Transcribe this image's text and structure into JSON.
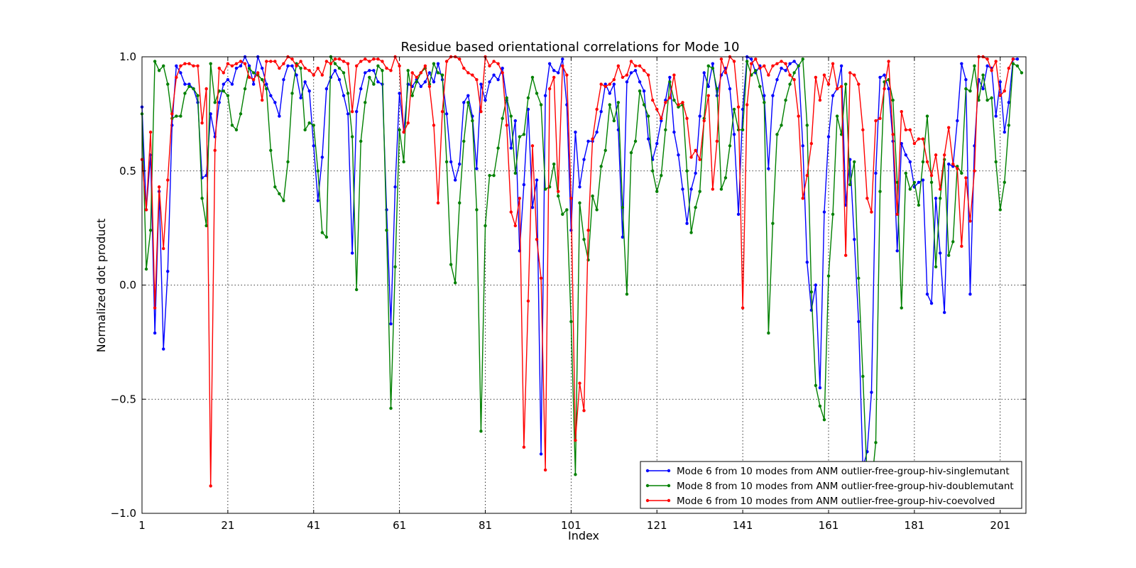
{
  "chart_data": {
    "type": "line",
    "title": "Residue based orientational correlations for Mode 10",
    "xlabel": "Index",
    "ylabel": "Normalized dot product",
    "xlim": [
      1,
      207
    ],
    "ylim": [
      -1.0,
      1.0
    ],
    "x_start": 1,
    "xticks": [
      1,
      21,
      41,
      61,
      81,
      101,
      121,
      141,
      161,
      181,
      201
    ],
    "yticks": [
      -1.0,
      -0.5,
      0.0,
      0.5,
      1.0
    ],
    "ytick_labels": [
      "−1.0",
      "−0.5",
      "0.0",
      "0.5",
      "1.0"
    ],
    "grid": true,
    "legend_position": "lower-right",
    "series": [
      {
        "name": "Mode 6 from 10 modes from ANM outlier-free-group-hiv-singlemutant",
        "color": "#0000ff",
        "values": [
          0.78,
          0.33,
          0.57,
          -0.21,
          0.41,
          -0.28,
          0.06,
          0.7,
          0.96,
          0.93,
          0.88,
          0.88,
          0.86,
          0.8,
          0.47,
          0.48,
          0.75,
          0.65,
          0.8,
          0.88,
          0.9,
          0.88,
          0.95,
          0.96,
          1.0,
          0.96,
          0.88,
          1.0,
          0.95,
          0.88,
          0.83,
          0.8,
          0.74,
          0.9,
          0.96,
          0.96,
          0.92,
          0.82,
          0.89,
          0.85,
          0.61,
          0.37,
          0.56,
          0.86,
          0.91,
          0.94,
          0.9,
          0.83,
          0.75,
          0.14,
          0.76,
          0.86,
          0.93,
          0.94,
          0.94,
          0.89,
          0.88,
          0.33,
          -0.17,
          0.43,
          0.84,
          0.67,
          0.88,
          0.87,
          0.9,
          0.87,
          0.89,
          0.93,
          0.89,
          0.97,
          0.9,
          0.75,
          0.54,
          0.46,
          0.53,
          0.8,
          0.83,
          0.74,
          0.51,
          0.88,
          0.81,
          0.89,
          0.92,
          0.9,
          0.95,
          0.81,
          0.6,
          0.72,
          0.15,
          0.44,
          0.77,
          0.34,
          0.46,
          -0.74,
          0.83,
          0.97,
          0.94,
          0.93,
          0.99,
          0.79,
          0.24,
          0.67,
          0.43,
          0.55,
          0.63,
          0.63,
          0.67,
          0.76,
          0.88,
          0.84,
          0.88,
          0.68,
          0.21,
          0.89,
          0.93,
          0.94,
          0.89,
          0.85,
          0.64,
          0.55,
          0.62,
          0.72,
          0.81,
          0.91,
          0.67,
          0.57,
          0.42,
          0.27,
          0.42,
          0.49,
          0.74,
          0.93,
          0.87,
          0.97,
          0.83,
          0.92,
          0.95,
          0.86,
          0.66,
          0.31,
          0.77,
          1.0,
          0.99,
          0.93,
          0.96,
          0.83,
          0.51,
          0.83,
          0.9,
          0.95,
          0.94,
          0.97,
          0.98,
          0.96,
          0.61,
          0.1,
          -0.11,
          0.0,
          -0.45,
          0.32,
          0.65,
          0.83,
          0.86,
          0.96,
          0.35,
          0.55,
          0.2,
          -0.16,
          -0.8,
          -0.73,
          -0.47,
          0.49,
          0.91,
          0.92,
          0.86,
          0.63,
          0.15,
          0.62,
          0.57,
          0.54,
          0.43,
          0.45,
          0.46,
          -0.04,
          -0.08,
          0.38,
          0.14,
          -0.12,
          0.53,
          0.52,
          0.72,
          0.97,
          0.9,
          -0.04,
          0.61,
          0.9,
          0.86,
          0.96,
          0.95,
          0.74,
          0.89,
          0.67,
          0.8,
          0.99,
          0.99
        ]
      },
      {
        "name": "Mode 8 from 10 modes from ANM outlier-free-group-hiv-doublemutant",
        "color": "#008000",
        "values": [
          0.75,
          0.07,
          0.24,
          0.98,
          0.94,
          0.96,
          0.88,
          0.73,
          0.74,
          0.74,
          0.84,
          0.87,
          0.86,
          0.83,
          0.38,
          0.26,
          0.97,
          0.8,
          0.85,
          0.85,
          0.83,
          0.7,
          0.68,
          0.75,
          0.86,
          0.95,
          0.93,
          0.92,
          0.9,
          0.86,
          0.59,
          0.43,
          0.4,
          0.37,
          0.54,
          0.84,
          0.97,
          0.95,
          0.68,
          0.71,
          0.7,
          0.5,
          0.23,
          0.21,
          1.0,
          0.97,
          0.95,
          0.93,
          0.84,
          0.65,
          -0.02,
          0.63,
          0.8,
          0.91,
          0.88,
          0.96,
          0.94,
          0.24,
          -0.54,
          0.08,
          0.68,
          0.54,
          0.94,
          0.83,
          0.89,
          0.93,
          0.95,
          0.88,
          0.97,
          0.93,
          0.92,
          0.54,
          0.09,
          0.01,
          0.36,
          0.63,
          0.8,
          0.72,
          0.33,
          -0.64,
          0.26,
          0.48,
          0.48,
          0.6,
          0.73,
          0.82,
          0.74,
          0.49,
          0.65,
          0.66,
          0.82,
          0.91,
          0.84,
          0.79,
          0.42,
          0.43,
          0.53,
          0.39,
          0.31,
          0.33,
          -0.16,
          -0.83,
          0.36,
          0.2,
          0.11,
          0.39,
          0.33,
          0.52,
          0.59,
          0.79,
          0.72,
          0.8,
          0.34,
          -0.04,
          0.58,
          0.63,
          0.85,
          0.79,
          0.74,
          0.5,
          0.41,
          0.48,
          0.68,
          0.89,
          0.81,
          0.78,
          0.79,
          0.5,
          0.23,
          0.34,
          0.41,
          0.73,
          0.96,
          0.95,
          0.86,
          0.42,
          0.47,
          0.61,
          0.77,
          0.68,
          0.68,
          0.98,
          0.92,
          0.94,
          0.87,
          0.8,
          -0.21,
          0.27,
          0.66,
          0.7,
          0.81,
          0.88,
          0.93,
          0.96,
          0.99,
          0.7,
          -0.03,
          -0.44,
          -0.53,
          -0.59,
          0.04,
          0.31,
          0.74,
          0.66,
          0.88,
          0.44,
          0.54,
          0.03,
          -0.4,
          -0.85,
          -0.88,
          -0.69,
          0.41,
          0.89,
          0.9,
          0.81,
          0.45,
          -0.1,
          0.49,
          0.42,
          0.45,
          0.35,
          0.54,
          0.74,
          0.45,
          0.08,
          0.38,
          0.55,
          0.13,
          0.19,
          0.52,
          0.49,
          0.86,
          0.85,
          0.96,
          0.81,
          0.92,
          0.81,
          0.82,
          0.54,
          0.33,
          0.45,
          0.7,
          0.97,
          0.96,
          0.93
        ]
      },
      {
        "name": "Mode 6 from 10 modes from ANM outlier-free-group-hiv-coevolved",
        "color": "#ff0000",
        "values": [
          0.55,
          0.33,
          0.67,
          -0.1,
          0.43,
          0.16,
          0.46,
          0.75,
          0.91,
          0.96,
          0.97,
          0.97,
          0.96,
          0.96,
          0.71,
          0.86,
          -0.88,
          0.59,
          0.95,
          0.93,
          0.97,
          0.96,
          0.97,
          0.98,
          0.97,
          0.91,
          0.9,
          0.93,
          0.81,
          0.98,
          0.98,
          0.98,
          0.95,
          0.97,
          1.0,
          0.99,
          0.96,
          0.98,
          0.95,
          0.94,
          0.92,
          0.95,
          0.92,
          0.98,
          0.97,
          0.99,
          0.99,
          0.98,
          0.97,
          0.76,
          0.96,
          0.98,
          0.99,
          0.98,
          0.99,
          0.99,
          0.98,
          0.95,
          0.94,
          1.0,
          0.96,
          0.67,
          0.71,
          0.93,
          0.91,
          0.93,
          0.96,
          0.87,
          0.7,
          0.36,
          0.76,
          0.98,
          1.0,
          1.0,
          0.99,
          0.95,
          0.93,
          0.92,
          0.9,
          0.76,
          1.0,
          0.96,
          0.98,
          0.97,
          0.93,
          0.7,
          0.32,
          0.26,
          0.38,
          -0.71,
          -0.07,
          0.61,
          0.2,
          0.03,
          -0.81,
          0.86,
          0.91,
          0.41,
          0.96,
          0.92,
          0.38,
          -0.68,
          -0.43,
          -0.55,
          0.24,
          0.64,
          0.77,
          0.88,
          0.87,
          0.88,
          0.9,
          0.96,
          0.91,
          0.92,
          0.98,
          0.96,
          0.96,
          0.94,
          0.92,
          0.81,
          0.77,
          0.73,
          0.8,
          0.82,
          0.92,
          0.79,
          0.8,
          0.73,
          0.56,
          0.59,
          0.55,
          0.72,
          0.83,
          0.42,
          0.63,
          0.99,
          0.93,
          1.0,
          0.98,
          0.78,
          -0.1,
          0.79,
          0.97,
          0.99,
          0.95,
          0.96,
          0.92,
          0.96,
          0.97,
          0.98,
          0.97,
          0.92,
          0.9,
          0.74,
          0.38,
          0.48,
          0.62,
          0.91,
          0.81,
          0.92,
          0.88,
          0.97,
          0.86,
          0.87,
          0.13,
          0.93,
          0.92,
          0.88,
          0.68,
          0.38,
          0.32,
          0.72,
          0.73,
          0.86,
          0.98,
          0.66,
          0.31,
          0.76,
          0.68,
          0.68,
          0.62,
          0.64,
          0.64,
          0.54,
          0.48,
          0.57,
          0.42,
          0.57,
          0.69,
          0.53,
          0.51,
          0.17,
          0.47,
          0.28,
          0.5,
          1.0,
          1.0,
          0.99,
          0.94,
          0.98,
          0.83,
          0.85,
          0.95,
          0.99
        ]
      }
    ]
  }
}
